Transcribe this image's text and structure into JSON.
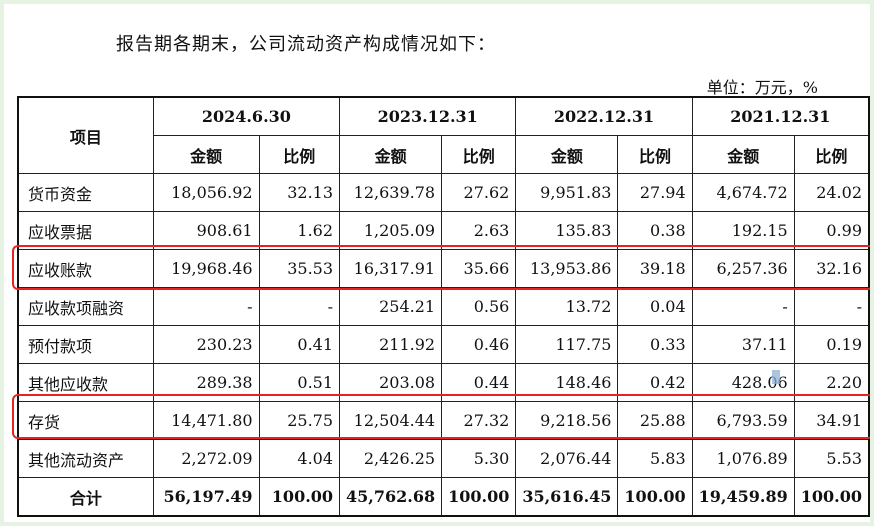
{
  "intro": "报告期各期末，公司流动资产构成情况如下：",
  "unit": "单位：万元，%",
  "header": {
    "item": "项目",
    "periods": [
      "2024.6.30",
      "2023.12.31",
      "2022.12.31",
      "2021.12.31"
    ],
    "amount": "金额",
    "ratio": "比例"
  },
  "rows": [
    {
      "label": "货币资金",
      "values": [
        "18,056.92",
        "32.13",
        "12,639.78",
        "27.62",
        "9,951.83",
        "27.94",
        "4,674.72",
        "24.02"
      ]
    },
    {
      "label": "应收票据",
      "values": [
        "908.61",
        "1.62",
        "1,205.09",
        "2.63",
        "135.83",
        "0.38",
        "192.15",
        "0.99"
      ]
    },
    {
      "label": "应收账款",
      "values": [
        "19,968.46",
        "35.53",
        "16,317.91",
        "35.66",
        "13,953.86",
        "39.18",
        "6,257.36",
        "32.16"
      ],
      "highlight": true
    },
    {
      "label": "应收款项融资",
      "values": [
        "-",
        "-",
        "254.21",
        "0.56",
        "13.72",
        "0.04",
        "-",
        "-"
      ]
    },
    {
      "label": "预付款项",
      "values": [
        "230.23",
        "0.41",
        "211.92",
        "0.46",
        "117.75",
        "0.33",
        "37.11",
        "0.19"
      ]
    },
    {
      "label": "其他应收款",
      "values": [
        "289.38",
        "0.51",
        "203.08",
        "0.44",
        "148.46",
        "0.42",
        "428.06",
        "2.20"
      ]
    },
    {
      "label": "存货",
      "values": [
        "14,471.80",
        "25.75",
        "12,504.44",
        "27.32",
        "9,218.56",
        "25.88",
        "6,793.59",
        "34.91"
      ],
      "highlight": true
    },
    {
      "label": "其他流动资产",
      "values": [
        "2,272.09",
        "4.04",
        "2,426.25",
        "5.30",
        "2,076.44",
        "5.83",
        "1,076.89",
        "5.53"
      ]
    },
    {
      "label": "合计",
      "values": [
        "56,197.49",
        "100.00",
        "45,762.68",
        "100.00",
        "35,616.45",
        "100.00",
        "19,459.89",
        "100.00"
      ],
      "total": true
    }
  ],
  "colors": {
    "background": "#e6f2e2",
    "highlight": "#e8231f"
  }
}
